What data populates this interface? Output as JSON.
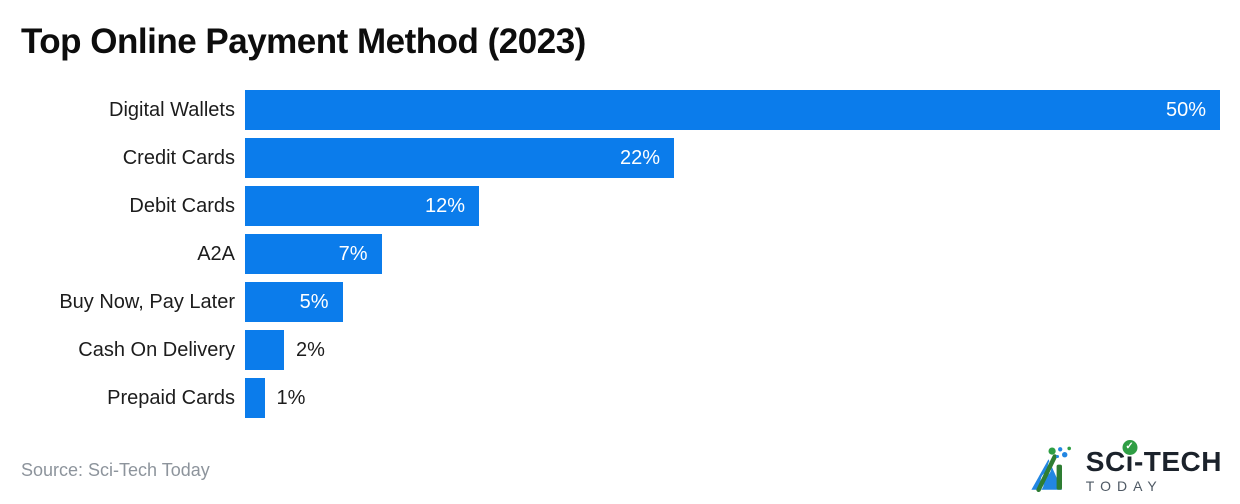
{
  "page": {
    "title": "Top Online Payment Method (2023)"
  },
  "chart_data": {
    "type": "bar",
    "orientation": "horizontal",
    "title": "Top Online Payment Method (2023)",
    "categories": [
      "Digital Wallets",
      "Credit Cards",
      "Debit Cards",
      "A2A",
      "Buy Now, Pay Later",
      "Cash On Delivery",
      "Prepaid Cards"
    ],
    "values": [
      50,
      22,
      12,
      7,
      5,
      2,
      1
    ],
    "value_labels": [
      "50%",
      "22%",
      "12%",
      "7%",
      "5%",
      "2%",
      "1%"
    ],
    "value_label_inside": [
      true,
      true,
      true,
      true,
      true,
      false,
      false
    ],
    "xlabel": "",
    "ylabel": "",
    "xlim": [
      0,
      50
    ],
    "grid": false,
    "legend": false,
    "bar_color": "#0b7ceb",
    "inside_label_color": "#ffffff",
    "outside_label_color": "#1c1c1c"
  },
  "footer": {
    "source": "Source: Sci-Tech Today"
  },
  "logo": {
    "text_main_left": "SC",
    "text_i": "i",
    "text_main_right": "-TECH",
    "text_sub": "TODAY",
    "check_glyph": "✓",
    "colors": {
      "blue": "#2286e2",
      "green": "#2e7d32",
      "dot_green": "#2f9e44",
      "dark": "#1b222b",
      "gray": "#4e5964"
    }
  }
}
